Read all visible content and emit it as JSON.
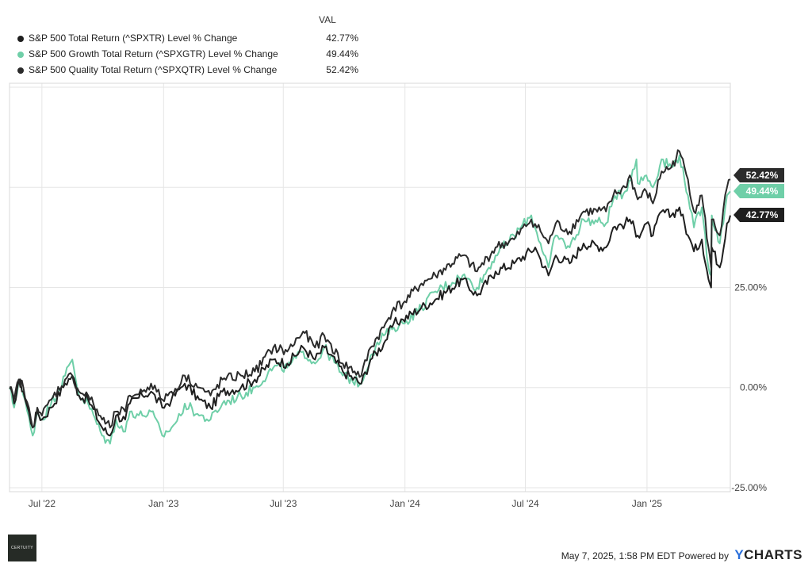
{
  "legend": {
    "header": "VAL",
    "items": [
      {
        "label": "S&P 500 Total Return (^SPXTR) Level % Change",
        "value": "42.77%",
        "color": "#1f1f1f"
      },
      {
        "label": "S&P 500 Growth Total Return (^SPXGTR) Level % Change",
        "value": "49.44%",
        "color": "#6fcfa8"
      },
      {
        "label": "S&P 500 Quality Total Return (^SPXQTR) Level % Change",
        "value": "52.42%",
        "color": "#2b2b2b"
      }
    ]
  },
  "footer": {
    "timestamp": "May 7, 2025, 1:58 PM EDT",
    "powered_by": "Powered by",
    "brand_y": "Y",
    "brand_rest": "CHARTS"
  },
  "logo_text": "CERTUITY",
  "chart_data": {
    "type": "line",
    "x_tick_labels": [
      "Jul '22",
      "Jan '23",
      "Jul '23",
      "Jan '24",
      "Jul '24",
      "Jan '25"
    ],
    "x_tick_dates": [
      "2022-07-01",
      "2023-01-01",
      "2023-07-01",
      "2024-01-01",
      "2024-07-01",
      "2025-01-01"
    ],
    "x_range": [
      "2022-05-13",
      "2025-05-07"
    ],
    "y_tick_labels": [
      "-25.00%",
      "0.00%",
      "25.00%"
    ],
    "y_ticks": [
      -25,
      0,
      25
    ],
    "y_range": [
      -26,
      76
    ],
    "grid": true,
    "legend_position": "top-left",
    "series": [
      {
        "name": "S&P 500 Total Return (^SPXTR) Level % Change",
        "color": "#1f1f1f",
        "end_label": "42.77%",
        "points": [
          [
            "2022-05-13",
            0
          ],
          [
            "2022-05-20",
            -4
          ],
          [
            "2022-05-27",
            2
          ],
          [
            "2022-06-03",
            -1
          ],
          [
            "2022-06-17",
            -10
          ],
          [
            "2022-06-24",
            -6
          ],
          [
            "2022-07-01",
            -8
          ],
          [
            "2022-07-15",
            -5
          ],
          [
            "2022-08-05",
            1
          ],
          [
            "2022-08-16",
            3
          ],
          [
            "2022-08-26",
            -2
          ],
          [
            "2022-09-09",
            -3
          ],
          [
            "2022-09-30",
            -10
          ],
          [
            "2022-10-12",
            -12
          ],
          [
            "2022-10-21",
            -7
          ],
          [
            "2022-11-04",
            -8
          ],
          [
            "2022-11-11",
            -4
          ],
          [
            "2022-11-30",
            -2
          ],
          [
            "2022-12-13",
            -1
          ],
          [
            "2022-12-30",
            -5
          ],
          [
            "2023-01-13",
            -3
          ],
          [
            "2023-01-27",
            0
          ],
          [
            "2023-02-02",
            1
          ],
          [
            "2023-02-24",
            -3
          ],
          [
            "2023-03-13",
            -5
          ],
          [
            "2023-03-31",
            -1
          ],
          [
            "2023-04-28",
            0
          ],
          [
            "2023-05-19",
            2
          ],
          [
            "2023-06-16",
            7
          ],
          [
            "2023-07-07",
            6
          ],
          [
            "2023-07-31",
            10
          ],
          [
            "2023-08-18",
            7
          ],
          [
            "2023-09-01",
            10
          ],
          [
            "2023-09-29",
            4
          ],
          [
            "2023-10-27",
            1
          ],
          [
            "2023-11-10",
            7
          ],
          [
            "2023-11-30",
            11
          ],
          [
            "2023-12-15",
            16
          ],
          [
            "2023-12-29",
            17
          ],
          [
            "2024-01-26",
            20
          ],
          [
            "2024-02-16",
            22
          ],
          [
            "2024-03-28",
            27
          ],
          [
            "2024-04-19",
            23
          ],
          [
            "2024-05-17",
            29
          ],
          [
            "2024-06-14",
            31
          ],
          [
            "2024-07-16",
            35
          ],
          [
            "2024-07-24",
            32
          ],
          [
            "2024-08-05",
            28
          ],
          [
            "2024-08-16",
            33
          ],
          [
            "2024-09-06",
            31
          ],
          [
            "2024-09-27",
            36
          ],
          [
            "2024-10-31",
            35
          ],
          [
            "2024-11-11",
            40
          ],
          [
            "2024-11-29",
            41
          ],
          [
            "2024-12-06",
            42
          ],
          [
            "2024-12-18",
            38
          ],
          [
            "2024-12-31",
            41
          ],
          [
            "2025-01-10",
            38
          ],
          [
            "2025-01-23",
            44
          ],
          [
            "2025-02-07",
            43
          ],
          [
            "2025-02-19",
            45
          ],
          [
            "2025-03-04",
            38
          ],
          [
            "2025-03-13",
            34
          ],
          [
            "2025-03-25",
            37
          ],
          [
            "2025-04-04",
            27
          ],
          [
            "2025-04-08",
            25
          ],
          [
            "2025-04-09",
            35
          ],
          [
            "2025-04-21",
            30
          ],
          [
            "2025-05-02",
            41
          ],
          [
            "2025-05-07",
            43
          ]
        ]
      },
      {
        "name": "S&P 500 Growth Total Return (^SPXGTR) Level % Change",
        "color": "#6fcfa8",
        "end_label": "49.44%",
        "points": [
          [
            "2022-05-13",
            0
          ],
          [
            "2022-05-20",
            -5
          ],
          [
            "2022-05-27",
            2
          ],
          [
            "2022-06-03",
            -2
          ],
          [
            "2022-06-17",
            -12
          ],
          [
            "2022-06-24",
            -6
          ],
          [
            "2022-07-01",
            -8
          ],
          [
            "2022-07-15",
            -4
          ],
          [
            "2022-08-05",
            3
          ],
          [
            "2022-08-16",
            7
          ],
          [
            "2022-08-26",
            -2
          ],
          [
            "2022-09-09",
            -4
          ],
          [
            "2022-09-30",
            -12
          ],
          [
            "2022-10-12",
            -14
          ],
          [
            "2022-10-21",
            -8
          ],
          [
            "2022-11-04",
            -11
          ],
          [
            "2022-11-11",
            -6
          ],
          [
            "2022-11-30",
            -7
          ],
          [
            "2022-12-13",
            -6
          ],
          [
            "2022-12-30",
            -12
          ],
          [
            "2023-01-13",
            -10
          ],
          [
            "2023-01-27",
            -7
          ],
          [
            "2023-02-02",
            -4
          ],
          [
            "2023-02-24",
            -7
          ],
          [
            "2023-03-13",
            -8
          ],
          [
            "2023-03-31",
            -4
          ],
          [
            "2023-04-28",
            -2
          ],
          [
            "2023-05-19",
            0
          ],
          [
            "2023-06-16",
            5
          ],
          [
            "2023-07-07",
            5
          ],
          [
            "2023-07-31",
            9
          ],
          [
            "2023-08-18",
            6
          ],
          [
            "2023-09-01",
            10
          ],
          [
            "2023-09-29",
            3
          ],
          [
            "2023-10-27",
            1
          ],
          [
            "2023-11-10",
            8
          ],
          [
            "2023-11-30",
            13
          ],
          [
            "2023-12-15",
            15
          ],
          [
            "2023-12-29",
            16
          ],
          [
            "2024-01-26",
            20
          ],
          [
            "2024-02-16",
            24
          ],
          [
            "2024-03-28",
            28
          ],
          [
            "2024-04-19",
            25
          ],
          [
            "2024-05-17",
            33
          ],
          [
            "2024-06-14",
            38
          ],
          [
            "2024-07-10",
            43
          ],
          [
            "2024-07-24",
            36
          ],
          [
            "2024-08-05",
            30
          ],
          [
            "2024-08-16",
            38
          ],
          [
            "2024-09-06",
            35
          ],
          [
            "2024-09-27",
            42
          ],
          [
            "2024-10-31",
            41
          ],
          [
            "2024-11-11",
            47
          ],
          [
            "2024-11-29",
            49
          ],
          [
            "2024-12-16",
            57
          ],
          [
            "2024-12-18",
            51
          ],
          [
            "2024-12-31",
            53
          ],
          [
            "2025-01-10",
            50
          ],
          [
            "2025-01-23",
            57
          ],
          [
            "2025-02-07",
            55
          ],
          [
            "2025-02-19",
            58
          ],
          [
            "2025-03-04",
            48
          ],
          [
            "2025-03-13",
            40
          ],
          [
            "2025-03-25",
            45
          ],
          [
            "2025-04-04",
            30
          ],
          [
            "2025-04-08",
            28
          ],
          [
            "2025-04-09",
            43
          ],
          [
            "2025-04-21",
            36
          ],
          [
            "2025-05-02",
            48
          ],
          [
            "2025-05-07",
            49
          ]
        ]
      },
      {
        "name": "S&P 500 Quality Total Return (^SPXQTR) Level % Change",
        "color": "#2b2b2b",
        "end_label": "52.42%",
        "points": [
          [
            "2022-05-13",
            0
          ],
          [
            "2022-05-20",
            -3
          ],
          [
            "2022-05-27",
            2
          ],
          [
            "2022-06-03",
            0
          ],
          [
            "2022-06-17",
            -10
          ],
          [
            "2022-06-24",
            -5
          ],
          [
            "2022-07-01",
            -7
          ],
          [
            "2022-07-15",
            -3
          ],
          [
            "2022-08-05",
            2
          ],
          [
            "2022-08-16",
            3
          ],
          [
            "2022-08-26",
            -1
          ],
          [
            "2022-09-09",
            -2
          ],
          [
            "2022-09-30",
            -8
          ],
          [
            "2022-10-12",
            -10
          ],
          [
            "2022-10-21",
            -6
          ],
          [
            "2022-11-04",
            -6
          ],
          [
            "2022-11-11",
            -2
          ],
          [
            "2022-11-30",
            -1
          ],
          [
            "2022-12-13",
            1
          ],
          [
            "2022-12-30",
            -3
          ],
          [
            "2023-01-13",
            -1
          ],
          [
            "2023-01-27",
            1
          ],
          [
            "2023-02-02",
            3
          ],
          [
            "2023-02-24",
            0
          ],
          [
            "2023-03-13",
            -2
          ],
          [
            "2023-03-31",
            2
          ],
          [
            "2023-04-28",
            3
          ],
          [
            "2023-05-19",
            4
          ],
          [
            "2023-06-16",
            10
          ],
          [
            "2023-07-07",
            9
          ],
          [
            "2023-07-31",
            14
          ],
          [
            "2023-08-18",
            10
          ],
          [
            "2023-09-01",
            13
          ],
          [
            "2023-09-29",
            6
          ],
          [
            "2023-10-27",
            3
          ],
          [
            "2023-11-10",
            10
          ],
          [
            "2023-11-30",
            15
          ],
          [
            "2023-12-15",
            20
          ],
          [
            "2023-12-29",
            21
          ],
          [
            "2024-01-26",
            26
          ],
          [
            "2024-02-16",
            28
          ],
          [
            "2024-03-28",
            33
          ],
          [
            "2024-04-19",
            29
          ],
          [
            "2024-05-17",
            35
          ],
          [
            "2024-06-14",
            37
          ],
          [
            "2024-07-10",
            42
          ],
          [
            "2024-07-24",
            39
          ],
          [
            "2024-08-05",
            36
          ],
          [
            "2024-08-16",
            41
          ],
          [
            "2024-09-06",
            39
          ],
          [
            "2024-09-27",
            44
          ],
          [
            "2024-10-31",
            44
          ],
          [
            "2024-11-11",
            48
          ],
          [
            "2024-11-29",
            50
          ],
          [
            "2024-12-06",
            53
          ],
          [
            "2024-12-18",
            47
          ],
          [
            "2024-12-31",
            49
          ],
          [
            "2025-01-10",
            46
          ],
          [
            "2025-01-23",
            54
          ],
          [
            "2025-02-07",
            55
          ],
          [
            "2025-02-19",
            59
          ],
          [
            "2025-03-04",
            52
          ],
          [
            "2025-03-13",
            44
          ],
          [
            "2025-03-25",
            48
          ],
          [
            "2025-04-04",
            35
          ],
          [
            "2025-04-08",
            30
          ],
          [
            "2025-04-09",
            42
          ],
          [
            "2025-04-21",
            38
          ],
          [
            "2025-05-02",
            50
          ],
          [
            "2025-05-07",
            52
          ]
        ]
      }
    ]
  }
}
